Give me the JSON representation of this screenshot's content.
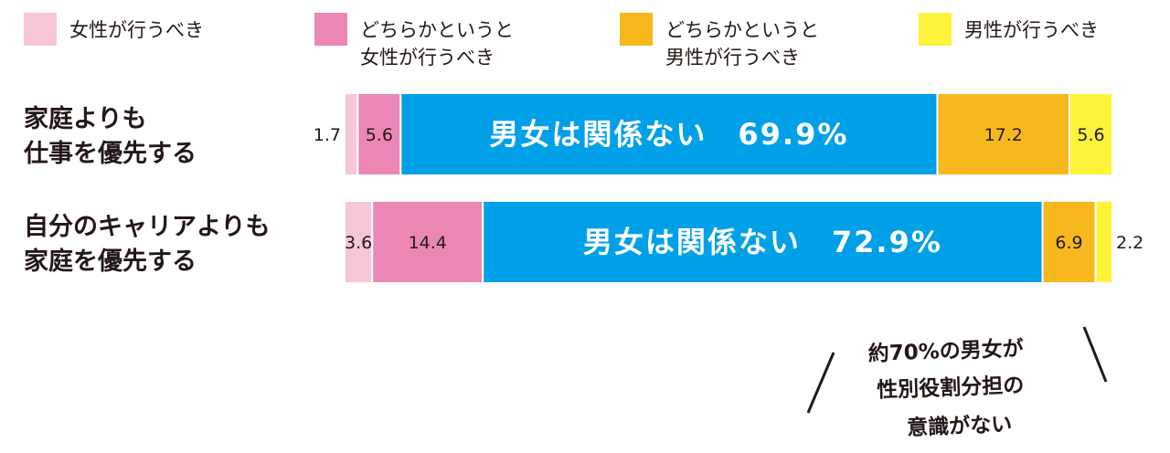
{
  "chart_data": {
    "type": "bar",
    "orientation": "horizontal",
    "stacked": true,
    "normalized_to_100": true,
    "legend_position": "top",
    "grid": false,
    "legend": [
      {
        "key": "female",
        "lines": [
          "女性が行うべき"
        ],
        "color": "#f7c6d9"
      },
      {
        "key": "rather_female",
        "lines": [
          "どちらかというと",
          "女性が行うべき"
        ],
        "color": "#ec87b5"
      },
      {
        "key": "rather_male",
        "lines": [
          "どちらかというと",
          "男性が行うべき"
        ],
        "color": "#f6b81c"
      },
      {
        "key": "male",
        "lines": [
          "男性が行うべき"
        ],
        "color": "#fff23a"
      }
    ],
    "neutral": {
      "label": "男女は関係ない",
      "color": "#00a0e8"
    },
    "categories": [
      {
        "lines": [
          "家庭よりも",
          "仕事を優先する"
        ]
      },
      {
        "lines": [
          "自分のキャリアよりも",
          "家庭を優先する"
        ]
      }
    ],
    "series": [
      {
        "key": "female",
        "values": [
          1.7,
          3.6
        ],
        "labels": [
          "1.7",
          "3.6"
        ]
      },
      {
        "key": "rather_female",
        "values": [
          5.6,
          14.4
        ],
        "labels": [
          "5.6",
          "14.4"
        ]
      },
      {
        "key": "neutral",
        "values": [
          69.9,
          72.9
        ],
        "labels": [
          "男女は関係ない　69.9%",
          "男女は関係ない　72.9%"
        ]
      },
      {
        "key": "rather_male",
        "values": [
          17.2,
          6.9
        ],
        "labels": [
          "17.2",
          "6.9"
        ]
      },
      {
        "key": "male",
        "values": [
          5.6,
          2.2
        ],
        "labels": [
          "5.6",
          "2.2"
        ]
      }
    ]
  },
  "annotation": {
    "lines": [
      "約70%の男女が",
      "性別役割分担の",
      "意識がない"
    ]
  },
  "colors": {
    "text": "#231815",
    "separator": "#ffffff",
    "neutral_label_text": "#ffffff"
  }
}
